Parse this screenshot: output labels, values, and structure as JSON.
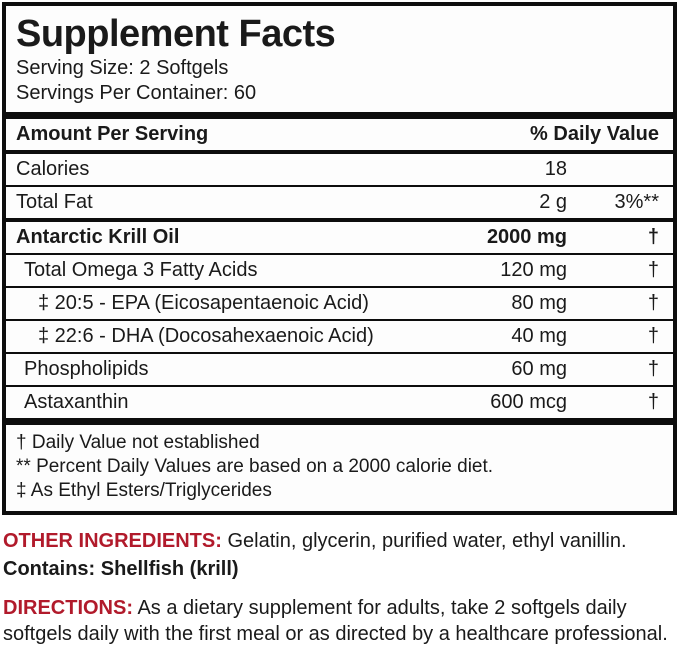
{
  "panel": {
    "title": "Supplement Facts",
    "serving_size": "Serving Size: 2 Softgels",
    "servings_per_container": "Servings Per Container: 60",
    "header": {
      "left": "Amount Per Serving",
      "right": "% Daily Value"
    }
  },
  "rows": [
    {
      "name": "Calories",
      "amount": "18",
      "dv": "",
      "indent": 0,
      "bold": false,
      "sep": "none"
    },
    {
      "name": "Total Fat",
      "amount": "2 g",
      "dv": "3%**",
      "indent": 0,
      "bold": false,
      "sep": "thin"
    },
    {
      "name": "Antarctic Krill Oil",
      "amount": "2000 mg",
      "dv": "†",
      "indent": 0,
      "bold": true,
      "sep": "medium"
    },
    {
      "name": "Total Omega 3 Fatty Acids",
      "amount": "120 mg",
      "dv": "†",
      "indent": 1,
      "bold": false,
      "sep": "thin"
    },
    {
      "name": "‡ 20:5 - EPA (Eicosapentaenoic Acid)",
      "amount": "80 mg",
      "dv": "†",
      "indent": 2,
      "bold": false,
      "sep": "thin"
    },
    {
      "name": "‡ 22:6 - DHA (Docosahexaenoic Acid)",
      "amount": "40 mg",
      "dv": "†",
      "indent": 2,
      "bold": false,
      "sep": "thin"
    },
    {
      "name": "Phospholipids",
      "amount": "60 mg",
      "dv": "†",
      "indent": 1,
      "bold": false,
      "sep": "thin"
    },
    {
      "name": "Astaxanthin",
      "amount": "600 mcg",
      "dv": "†",
      "indent": 1,
      "bold": false,
      "sep": "thin"
    }
  ],
  "footnotes": [
    "† Daily Value not established",
    "** Percent Daily Values are based on a 2000 calorie diet.",
    "‡ As Ethyl Esters/Triglycerides"
  ],
  "other_ingredients": {
    "label": "OTHER INGREDIENTS:",
    "text": "Gelatin, glycerin, purified water, ethyl vanillin."
  },
  "contains": "Contains: Shellfish (krill)",
  "directions": {
    "label": "DIRECTIONS:",
    "text": "As a dietary supplement for adults, take 2 softgels daily softgels daily with the first meal or as directed by a healthcare professional."
  },
  "colors": {
    "accent_red": "#b11a2b",
    "text_black": "#1a1a1a",
    "border_black": "#0d0d0d"
  }
}
